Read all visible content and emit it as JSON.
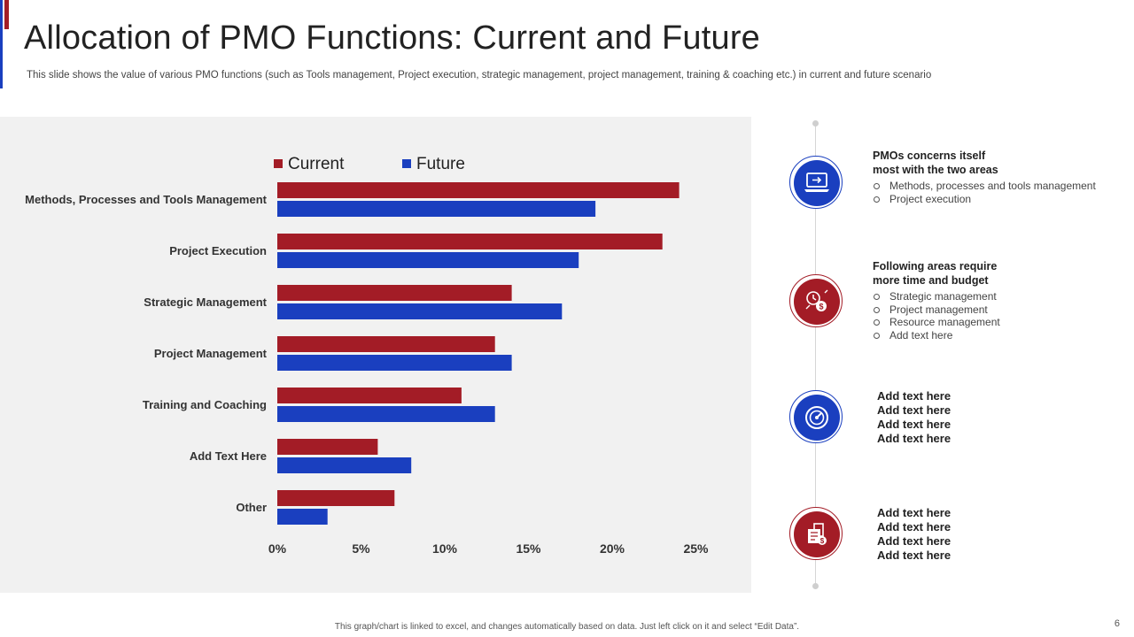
{
  "slide": {
    "title": "Allocation of PMO Functions: Current and Future",
    "subtitle": "This slide shows the value of various PMO functions (such as Tools management, Project execution, strategic management, project management, training & coaching etc.) in current and future scenario",
    "footer": "This graph/chart is linked to excel, and changes automatically based on data. Just left click on it and select “Edit Data”.",
    "page_number": "6"
  },
  "colors": {
    "current": "#a31c26",
    "future": "#1a3fbf",
    "panel": "#f1f1f1"
  },
  "chart_data": {
    "type": "bar",
    "orientation": "horizontal",
    "categories": [
      "Methods, Processes and Tools Management",
      "Project Execution",
      "Strategic Management",
      "Project Management",
      "Training and Coaching",
      "Add Text Here",
      "Other"
    ],
    "series": [
      {
        "name": "Current",
        "values": [
          24,
          23,
          14,
          13,
          11,
          6,
          7
        ]
      },
      {
        "name": "Future",
        "values": [
          19,
          18,
          17,
          14,
          13,
          8,
          3
        ]
      }
    ],
    "xlim": [
      0,
      25
    ],
    "xticks": [
      "0%",
      "5%",
      "10%",
      "15%",
      "20%",
      "25%"
    ],
    "unit": "%",
    "legend_position": "top",
    "grid": false
  },
  "panel": {
    "block1": {
      "heading_line1": "PMOs concerns itself",
      "heading_line2": "most with the two areas",
      "items": [
        "Methods, processes and tools management",
        "Project execution"
      ],
      "icon": "laptop-icon"
    },
    "block2": {
      "heading_line1": "Following areas require",
      "heading_line2": "more time and budget",
      "items": [
        "Strategic management",
        "Project management",
        "Resource management",
        "Add text here"
      ],
      "icon": "time-money-icon"
    },
    "block3": {
      "lines": [
        "Add text here",
        "Add text here",
        "Add text here",
        "Add text here"
      ],
      "icon": "gauge-icon"
    },
    "block4": {
      "lines": [
        "Add text here",
        "Add text here",
        "Add text here",
        "Add text here"
      ],
      "icon": "invoice-icon"
    }
  }
}
